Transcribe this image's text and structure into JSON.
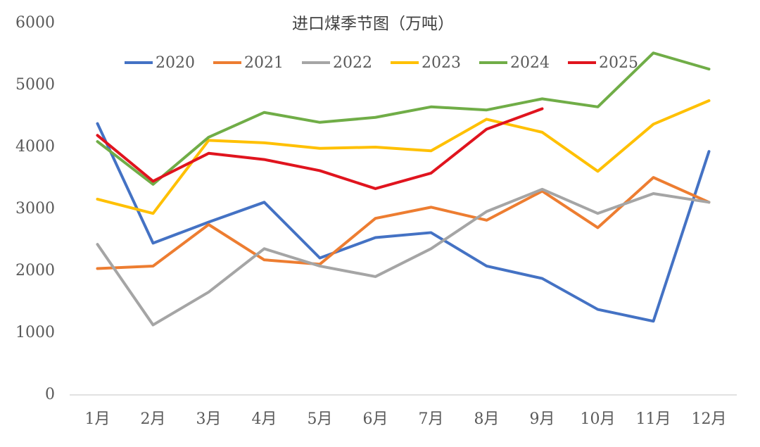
{
  "chart_data": {
    "type": "line",
    "title": "进口煤季节图（万吨）",
    "categories": [
      "1月",
      "2月",
      "3月",
      "4月",
      "5月",
      "6月",
      "7月",
      "8月",
      "9月",
      "10月",
      "11月",
      "12月"
    ],
    "series": [
      {
        "name": "2020",
        "color": "#4472c4",
        "values": [
          4380,
          2450,
          2790,
          3110,
          2210,
          2540,
          2620,
          2080,
          1880,
          1380,
          1190,
          3930
        ]
      },
      {
        "name": "2021",
        "color": "#ed7d31",
        "values": [
          2040,
          2080,
          2750,
          2180,
          2110,
          2850,
          3030,
          2820,
          3290,
          2700,
          3510,
          3110
        ]
      },
      {
        "name": "2022",
        "color": "#a5a5a5",
        "values": [
          2430,
          1130,
          1660,
          2360,
          2080,
          1910,
          2360,
          2960,
          3320,
          2930,
          3250,
          3110
        ]
      },
      {
        "name": "2023",
        "color": "#ffc000",
        "values": [
          3160,
          2930,
          4110,
          4070,
          3980,
          4000,
          3940,
          4450,
          4240,
          3610,
          4370,
          4750
        ]
      },
      {
        "name": "2024",
        "color": "#70ad47",
        "values": [
          4090,
          3400,
          4160,
          4560,
          4400,
          4480,
          4650,
          4600,
          4780,
          4650,
          5520,
          5260
        ]
      },
      {
        "name": "2025",
        "color": "#e0141e",
        "values": [
          4190,
          3450,
          3900,
          3800,
          3620,
          3330,
          3580,
          4290,
          4620,
          null,
          null,
          null
        ]
      }
    ],
    "ylim": [
      0,
      6000
    ],
    "yticks": [
      0,
      1000,
      2000,
      3000,
      4000,
      5000,
      6000
    ],
    "grid": false,
    "legend": "top"
  }
}
